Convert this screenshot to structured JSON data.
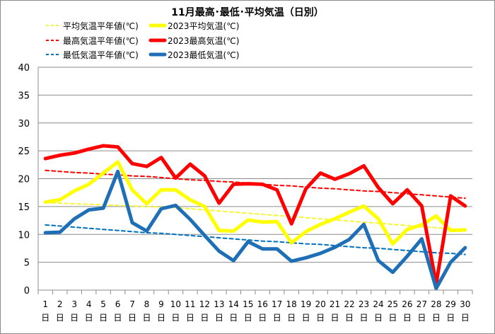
{
  "chart_data": {
    "type": "line",
    "title": "11月最高･最低･平均気温（日別）",
    "ylim": [
      0,
      40
    ],
    "yticks": [
      0,
      5,
      10,
      15,
      20,
      25,
      30,
      35,
      40
    ],
    "grid": true,
    "legend_position": "top",
    "categories": [
      "1",
      "2",
      "3",
      "4",
      "5",
      "6",
      "7",
      "8",
      "9",
      "10",
      "11",
      "12",
      "13",
      "14",
      "15",
      "16",
      "17",
      "18",
      "19",
      "20",
      "21",
      "22",
      "23",
      "24",
      "25",
      "26",
      "27",
      "28",
      "29",
      "30"
    ],
    "day_suffix": "日",
    "series": [
      {
        "name": "平均気温平年値(℃)",
        "color": "#f5f53a",
        "dash": true,
        "width": 2,
        "values": [
          15.7,
          15.6,
          15.5,
          15.4,
          15.3,
          15.2,
          15.1,
          15.0,
          14.9,
          14.8,
          14.6,
          14.4,
          14.2,
          14.0,
          13.8,
          13.6,
          13.4,
          13.2,
          13.0,
          12.8,
          12.6,
          12.4,
          12.2,
          12.0,
          11.8,
          11.6,
          11.4,
          11.2,
          11.0,
          10.8
        ]
      },
      {
        "name": "2023平均気温(℃)",
        "color": "#ffff00",
        "dash": false,
        "width": 5,
        "values": [
          15.8,
          16.2,
          17.8,
          19.0,
          21.0,
          23.0,
          18.0,
          15.5,
          18.0,
          18.0,
          16.2,
          15.0,
          10.7,
          10.6,
          12.6,
          12.2,
          12.3,
          8.5,
          10.5,
          11.8,
          12.8,
          14.0,
          15.1,
          12.8,
          8.3,
          10.9,
          11.7,
          13.3,
          10.7,
          10.8
        ]
      },
      {
        "name": "最高気温平年値(℃)",
        "color": "#ff0000",
        "dash": true,
        "width": 2,
        "values": [
          21.5,
          21.3,
          21.1,
          21.0,
          20.8,
          20.7,
          20.5,
          20.4,
          20.2,
          20.0,
          19.8,
          19.7,
          19.5,
          19.4,
          19.2,
          19.0,
          18.8,
          18.7,
          18.5,
          18.3,
          18.2,
          18.0,
          17.8,
          17.7,
          17.5,
          17.3,
          17.1,
          16.9,
          16.7,
          16.5
        ]
      },
      {
        "name": "2023最高気温(℃)",
        "color": "#ff0000",
        "dash": false,
        "width": 5,
        "values": [
          23.6,
          24.2,
          24.6,
          25.3,
          25.9,
          25.7,
          22.7,
          22.2,
          23.8,
          20.1,
          22.6,
          20.5,
          15.6,
          19.0,
          19.1,
          19.0,
          18.0,
          11.9,
          18.2,
          21.0,
          19.9,
          20.9,
          22.3,
          18.4,
          15.5,
          18.0,
          15.1,
          1.1,
          16.9,
          15.1
        ]
      },
      {
        "name": "最低気温平年値(℃)",
        "color": "#0070c0",
        "dash": true,
        "width": 2,
        "values": [
          11.7,
          11.5,
          11.3,
          11.1,
          10.9,
          10.7,
          10.5,
          10.3,
          10.2,
          10.0,
          9.8,
          9.6,
          9.4,
          9.2,
          9.0,
          8.8,
          8.7,
          8.5,
          8.3,
          8.2,
          8.0,
          7.8,
          7.6,
          7.5,
          7.3,
          7.1,
          6.9,
          6.7,
          6.6,
          6.4
        ]
      },
      {
        "name": "2023最低気温(℃)",
        "color": "#1f6fb7",
        "dash": false,
        "width": 5,
        "values": [
          10.3,
          10.4,
          12.8,
          14.4,
          14.7,
          21.3,
          12.1,
          10.6,
          14.6,
          15.2,
          12.7,
          9.8,
          7.0,
          5.3,
          8.7,
          7.4,
          7.4,
          5.2,
          5.8,
          6.6,
          7.7,
          9.1,
          11.8,
          5.3,
          3.2,
          6.1,
          9.2,
          0.3,
          5.0,
          7.6
        ]
      }
    ]
  }
}
